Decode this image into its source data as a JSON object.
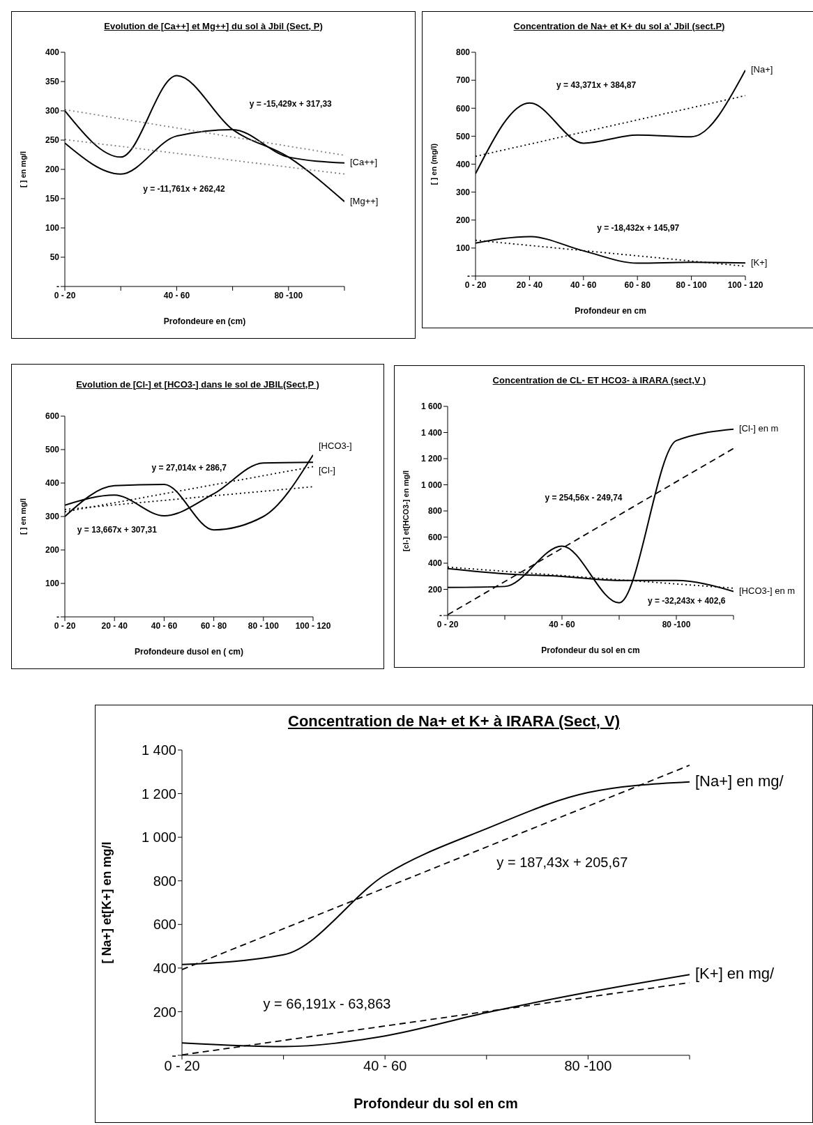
{
  "chart_data": [
    {
      "type": "line",
      "title": "Evolution de [Ca++] et Mg++] du sol à Jbil (Sect, P)",
      "xlabel": "Profondeure en (cm)",
      "ylabel": "[  ] en mg/l",
      "categories": [
        "0 - 20",
        null,
        "40 - 60",
        null,
        "80 -100",
        null
      ],
      "ylim": [
        0,
        400
      ],
      "yticks": [
        {
          "value": 0,
          "label": "-"
        },
        50,
        100,
        150,
        200,
        250,
        300,
        350,
        400
      ],
      "series": [
        {
          "name": "[Mg++]",
          "color": "#000000",
          "values": [
            300,
            221,
            360,
            268,
            221,
            145
          ]
        },
        {
          "name": "[Ca++]",
          "color": "#000000",
          "values": [
            245,
            192,
            257,
            268,
            221,
            211
          ]
        },
        {
          "color": "#808080",
          "line_style": "dotted",
          "values": [
            302,
            null,
            null,
            null,
            null,
            224
          ]
        },
        {
          "color": "#808080",
          "line_style": "dotted",
          "values": [
            251,
            null,
            null,
            null,
            null,
            192
          ]
        }
      ],
      "annotations": [
        "y = -15,429x + 317,33",
        "y = -11,761x + 262,42"
      ]
    },
    {
      "type": "line",
      "title": "Concentration de Na+ et K+ du sol a' Jbil (sect.P)",
      "xlabel": "Profondeur en cm",
      "ylabel": "[ ] en (mg/l)",
      "categories": [
        "0 - 20",
        "20 - 40",
        "40 - 60",
        "60 - 80",
        "80 - 100",
        "100 - 120"
      ],
      "ylim": [
        0,
        800
      ],
      "yticks": [
        {
          "value": 0,
          "label": "-"
        },
        100,
        200,
        300,
        400,
        500,
        600,
        700,
        800
      ],
      "series": [
        {
          "name": "[Na+]",
          "color": "#000000",
          "values": [
            366,
            619,
            475,
            504,
            498,
            736
          ]
        },
        {
          "name": "[K+]",
          "color": "#000000",
          "values": [
            118,
            141,
            90,
            46,
            49,
            47
          ]
        },
        {
          "color": "#000000",
          "line_style": "dotted",
          "values": [
            428,
            null,
            null,
            null,
            null,
            645
          ]
        },
        {
          "color": "#000000",
          "line_style": "dotted",
          "values": [
            128,
            null,
            null,
            null,
            null,
            35
          ]
        }
      ],
      "annotations": [
        "y = 43,371x + 384,87",
        "y = -18,432x + 145,97"
      ]
    },
    {
      "type": "line",
      "title": "Evolution de [Cl-] et [HCO3-] dans le sol de JBIL(Sect,P )",
      "xlabel": "Profondeure dusol en ( cm)",
      "ylabel": "[  ] en mg/l",
      "categories": [
        "0 - 20",
        "20 - 40",
        "40 - 60",
        "60 - 80",
        "80 - 100",
        "100 - 120"
      ],
      "ylim": [
        0,
        600
      ],
      "yticks": [
        {
          "value": 0,
          "label": "-"
        },
        100,
        200,
        300,
        400,
        500,
        600
      ],
      "series": [
        {
          "name": "[HCO3-]",
          "color": "#000000",
          "values": [
            300,
            392,
            396,
            260,
            300,
            484
          ]
        },
        {
          "name": "[Cl-]",
          "color": "#000000",
          "values": [
            334,
            364,
            302,
            368,
            460,
            462
          ]
        },
        {
          "color": "#000000",
          "line_style": "dotted",
          "values": [
            314,
            null,
            null,
            null,
            null,
            449
          ]
        },
        {
          "color": "#000000",
          "line_style": "dotted",
          "values": [
            321,
            null,
            null,
            null,
            null,
            389
          ]
        }
      ],
      "annotations": [
        "y = 27,014x + 286,7",
        "y = 13,667x + 307,31"
      ]
    },
    {
      "type": "line",
      "title": "Concentration de CL- ET HCO3- à IRARA (sect,V )",
      "xlabel": "Profondeur du sol en cm",
      "ylabel": "[cl-] et[HCO3-] en mg/l",
      "categories": [
        "0 - 20",
        null,
        "40 - 60",
        null,
        "80 -100",
        null
      ],
      "ylim": [
        0,
        1600
      ],
      "yticks": [
        {
          "value": 0,
          "label": "-"
        },
        200,
        400,
        600,
        800,
        {
          "value": 1000,
          "label": "1 000"
        },
        {
          "value": 1200,
          "label": "1 200"
        },
        {
          "value": 1400,
          "label": "1 400"
        },
        {
          "value": 1600,
          "label": "1 600"
        }
      ],
      "series": [
        {
          "name": "[Cl-] en m",
          "color": "#000000",
          "values": [
            214,
            222,
            531,
            97,
            1338,
            1425
          ]
        },
        {
          "name": "[HCO3-] en m",
          "color": "#000000",
          "values": [
            359,
            319,
            299,
            268,
            268,
            184
          ]
        },
        {
          "color": "#000000",
          "line_style": "dashed",
          "values": [
            5,
            null,
            null,
            null,
            null,
            1278
          ]
        },
        {
          "color": "#000000",
          "line_style": "dotted",
          "values": [
            370,
            null,
            null,
            null,
            null,
            209
          ]
        }
      ],
      "annotations": [
        "y = 254,56x - 249,74",
        "y = -32,243x + 402,6"
      ]
    },
    {
      "type": "line",
      "title": "Concentration de Na+ et K+ à IRARA (Sect, V)",
      "xlabel": "Profondeur du sol en cm",
      "ylabel": "[ Na+] et[K+] en mg/l",
      "categories": [
        "0 - 20",
        null,
        "40 - 60",
        null,
        "80 -100",
        null
      ],
      "ylim": [
        0,
        1400
      ],
      "yticks": [
        {
          "value": 0,
          "label": "-"
        },
        200,
        400,
        600,
        800,
        {
          "value": 1000,
          "label": "1 000"
        },
        {
          "value": 1200,
          "label": "1 200"
        },
        {
          "value": 1400,
          "label": "1 400"
        }
      ],
      "series": [
        {
          "name": "[Na+] en mg/",
          "color": "#000000",
          "values": [
            416,
            461,
            827,
            1039,
            1205,
            1254
          ]
        },
        {
          "name": "[K+] en mg/",
          "color": "#000000",
          "values": [
            57,
            40,
            89,
            196,
            289,
            370
          ]
        },
        {
          "color": "#000000",
          "line_style": "dashed",
          "values": [
            393,
            null,
            null,
            null,
            null,
            1330
          ]
        },
        {
          "color": "#000000",
          "line_style": "dashed",
          "values": [
            2,
            null,
            null,
            null,
            null,
            333
          ]
        }
      ],
      "annotations": [
        "y = 187,43x + 205,67",
        "y = 66,191x - 63,863"
      ]
    }
  ]
}
